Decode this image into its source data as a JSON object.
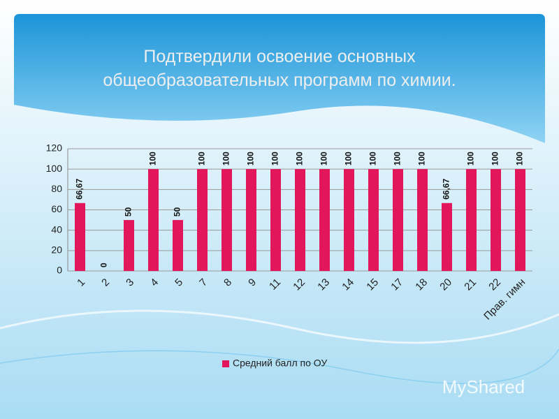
{
  "chart_data": {
    "type": "bar",
    "title": "Подтвердили освоение основных общеобразовательных программ  по  химии.",
    "categories": [
      "1",
      "2",
      "3",
      "4",
      "5",
      "7",
      "8",
      "9",
      "11",
      "12",
      "13",
      "14",
      "15",
      "17",
      "18",
      "20",
      "21",
      "22",
      "Прав. гимн"
    ],
    "series": [
      {
        "name": "Средний балл по ОУ",
        "color": "#e2175b",
        "values": [
          66.67,
          0,
          50,
          100,
          50,
          100,
          100,
          100,
          100,
          100,
          100,
          100,
          100,
          100,
          100,
          66.67,
          100,
          100,
          100
        ],
        "value_labels": [
          "66,67",
          "0",
          "50",
          "100",
          "50",
          "100",
          "100",
          "100",
          "100",
          "100",
          "100",
          "100",
          "100",
          "100",
          "100",
          "66,67",
          "100",
          "100",
          "100"
        ]
      }
    ],
    "ylim": [
      0,
      120
    ],
    "yticks": [
      0,
      20,
      40,
      60,
      80,
      100,
      120
    ],
    "grid": true,
    "legend": "bottom",
    "watermark": "MyShared"
  }
}
